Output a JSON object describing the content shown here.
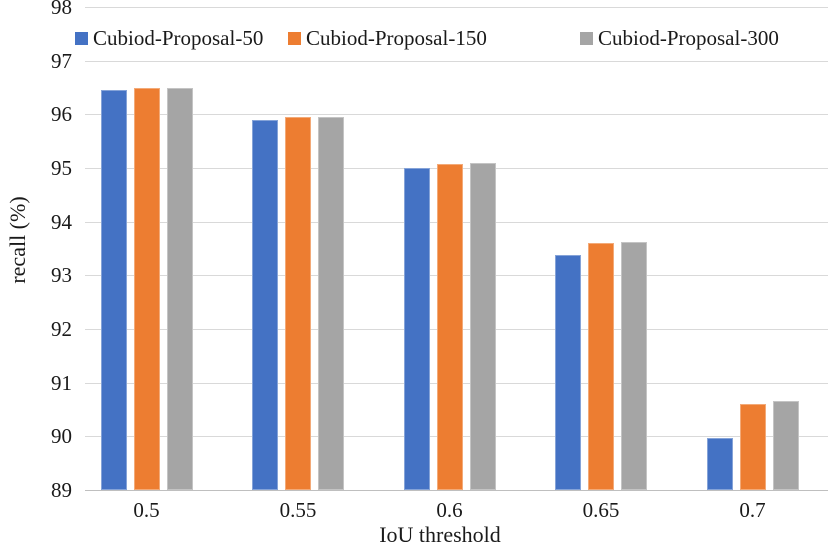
{
  "chart_data": {
    "type": "bar",
    "title": "",
    "xlabel": "IoU threshold",
    "ylabel": "recall (%)",
    "categories": [
      "0.5",
      "0.55",
      "0.6",
      "0.65",
      "0.7"
    ],
    "series": [
      {
        "name": "Cubiod-Proposal-50",
        "color": "#4472C4",
        "values": [
          96.45,
          95.9,
          95.0,
          93.37,
          89.97
        ]
      },
      {
        "name": "Cubiod-Proposal-150",
        "color": "#ED7D31",
        "values": [
          96.5,
          95.95,
          95.08,
          93.6,
          90.6
        ]
      },
      {
        "name": "Cubiod-Proposal-300",
        "color": "#A5A5A5",
        "values": [
          96.5,
          95.95,
          95.1,
          93.63,
          90.65
        ]
      }
    ],
    "ylim": [
      89,
      98
    ],
    "ytick_step": 1,
    "yticks": [
      "89",
      "90",
      "91",
      "92",
      "93",
      "94",
      "95",
      "96",
      "97",
      "98"
    ],
    "grid": true,
    "legend_position": "top-inside"
  },
  "colors": {
    "gridline": "#d9d9d9",
    "axis_line": "#bfbfbf",
    "text": "#1a1a1a",
    "background": "#ffffff"
  }
}
